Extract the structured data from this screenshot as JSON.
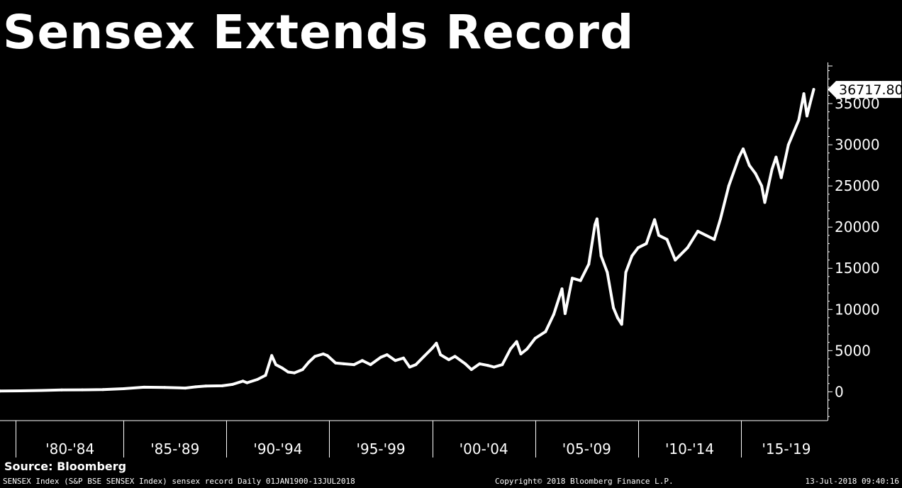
{
  "title": "Sensex Extends Record",
  "source": "Source: Bloomberg",
  "footer": {
    "left": "SENSEX Index (S&P BSE SENSEX Index) sensex record  Daily 01JAN1900-13JUL2018",
    "middle": "Copyright© 2018 Bloomberg Finance L.P.",
    "right": "13-Jul-2018 09:40:16"
  },
  "colors": {
    "background": "#000000",
    "line": "#ffffff",
    "label_box": "#ffffff",
    "label_text": "#000000"
  },
  "chart_data": {
    "type": "line",
    "title": "Sensex Extends Record",
    "xlabel": "",
    "ylabel": "",
    "ylim": [
      -3500,
      40000
    ],
    "y_ticks": [
      0,
      5000,
      10000,
      15000,
      20000,
      25000,
      30000,
      35000
    ],
    "x_range": [
      1979.0,
      2019.2
    ],
    "x_period_boundaries": [
      1979.75,
      1985.0,
      1990.0,
      1995.0,
      2000.0,
      2005.0,
      2010.0,
      2015.0
    ],
    "x_tick_labels": [
      {
        "label": "'80-'84",
        "center": 1982.4
      },
      {
        "label": "'85-'89",
        "center": 1987.5
      },
      {
        "label": "'90-'94",
        "center": 1992.5
      },
      {
        "label": "'95-'99",
        "center": 1997.5
      },
      {
        "label": "'00-'04",
        "center": 2002.5
      },
      {
        "label": "'05-'09",
        "center": 2007.5
      },
      {
        "label": "'10-'14",
        "center": 2012.5
      },
      {
        "label": "'15-'19",
        "center": 2017.2
      }
    ],
    "last_value": {
      "label": "36717.80",
      "value": 36717.8
    },
    "grid": false,
    "legend": "none",
    "series": [
      {
        "name": "",
        "points": [
          [
            1979.0,
            100
          ],
          [
            1980.0,
            120
          ],
          [
            1981.0,
            160
          ],
          [
            1982.0,
            220
          ],
          [
            1983.0,
            240
          ],
          [
            1984.0,
            260
          ],
          [
            1985.0,
            380
          ],
          [
            1986.0,
            560
          ],
          [
            1987.0,
            520
          ],
          [
            1988.0,
            450
          ],
          [
            1988.5,
            600
          ],
          [
            1989.0,
            700
          ],
          [
            1989.8,
            730
          ],
          [
            1990.3,
            900
          ],
          [
            1990.8,
            1300
          ],
          [
            1991.0,
            1100
          ],
          [
            1991.5,
            1500
          ],
          [
            1991.9,
            2000
          ],
          [
            1992.2,
            4400
          ],
          [
            1992.4,
            3300
          ],
          [
            1992.7,
            2900
          ],
          [
            1993.0,
            2400
          ],
          [
            1993.3,
            2300
          ],
          [
            1993.7,
            2700
          ],
          [
            1994.0,
            3600
          ],
          [
            1994.3,
            4300
          ],
          [
            1994.7,
            4600
          ],
          [
            1994.9,
            4400
          ],
          [
            1995.3,
            3500
          ],
          [
            1995.7,
            3400
          ],
          [
            1996.2,
            3300
          ],
          [
            1996.6,
            3800
          ],
          [
            1997.0,
            3300
          ],
          [
            1997.5,
            4200
          ],
          [
            1997.8,
            4500
          ],
          [
            1998.2,
            3800
          ],
          [
            1998.6,
            4100
          ],
          [
            1998.9,
            3000
          ],
          [
            1999.2,
            3300
          ],
          [
            1999.6,
            4300
          ],
          [
            2000.0,
            5300
          ],
          [
            2000.2,
            5900
          ],
          [
            2000.4,
            4500
          ],
          [
            2000.8,
            3900
          ],
          [
            2001.1,
            4300
          ],
          [
            2001.6,
            3400
          ],
          [
            2001.9,
            2700
          ],
          [
            2002.3,
            3400
          ],
          [
            2002.7,
            3200
          ],
          [
            2003.0,
            3000
          ],
          [
            2003.4,
            3300
          ],
          [
            2003.8,
            5200
          ],
          [
            2004.1,
            6100
          ],
          [
            2004.3,
            4600
          ],
          [
            2004.6,
            5200
          ],
          [
            2005.0,
            6500
          ],
          [
            2005.5,
            7300
          ],
          [
            2005.9,
            9400
          ],
          [
            2006.3,
            12500
          ],
          [
            2006.45,
            9500
          ],
          [
            2006.8,
            13800
          ],
          [
            2007.2,
            13500
          ],
          [
            2007.6,
            15500
          ],
          [
            2007.9,
            20300
          ],
          [
            2008.0,
            21000
          ],
          [
            2008.2,
            16500
          ],
          [
            2008.5,
            14500
          ],
          [
            2008.8,
            10200
          ],
          [
            2009.0,
            9000
          ],
          [
            2009.2,
            8200
          ],
          [
            2009.4,
            14500
          ],
          [
            2009.7,
            16500
          ],
          [
            2010.0,
            17500
          ],
          [
            2010.4,
            18000
          ],
          [
            2010.8,
            20900
          ],
          [
            2011.0,
            19000
          ],
          [
            2011.4,
            18500
          ],
          [
            2011.8,
            16000
          ],
          [
            2012.0,
            16500
          ],
          [
            2012.4,
            17500
          ],
          [
            2012.9,
            19500
          ],
          [
            2013.3,
            19000
          ],
          [
            2013.7,
            18500
          ],
          [
            2014.0,
            21000
          ],
          [
            2014.4,
            25000
          ],
          [
            2014.9,
            28500
          ],
          [
            2015.1,
            29500
          ],
          [
            2015.4,
            27500
          ],
          [
            2015.7,
            26500
          ],
          [
            2016.0,
            25000
          ],
          [
            2016.15,
            23000
          ],
          [
            2016.5,
            27000
          ],
          [
            2016.7,
            28500
          ],
          [
            2016.95,
            26000
          ],
          [
            2017.3,
            30000
          ],
          [
            2017.8,
            33000
          ],
          [
            2018.05,
            36200
          ],
          [
            2018.2,
            33500
          ],
          [
            2018.35,
            35000
          ],
          [
            2018.53,
            36718
          ]
        ]
      }
    ]
  }
}
